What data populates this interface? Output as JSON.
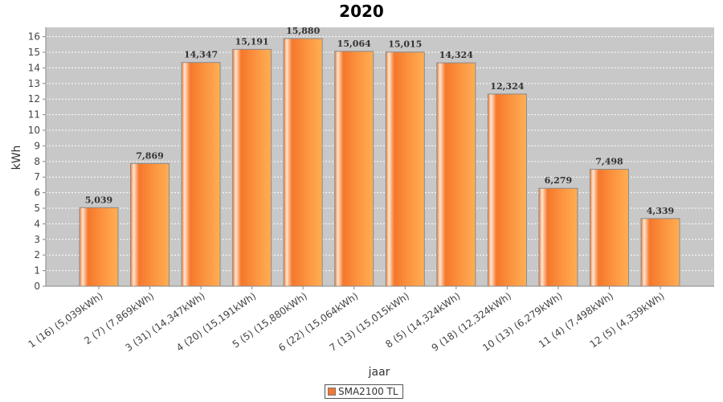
{
  "chart_data": {
    "type": "bar",
    "title": "2020",
    "xlabel": "jaar",
    "ylabel": "kWh",
    "ylim": [
      0,
      16.6
    ],
    "yticks": [
      0,
      1,
      2,
      3,
      4,
      5,
      6,
      7,
      8,
      9,
      10,
      11,
      12,
      13,
      14,
      15,
      16
    ],
    "grid": true,
    "legend_position": "bottom-center",
    "categories": [
      "1 (16)  (5,039kWh)",
      "2 (7)  (7,869kWh)",
      "3 (31)  (14,347kWh)",
      "4 (20)  (15,191kWh)",
      "5 (5)  (15,880kWh)",
      "6 (22)  (15,064kWh)",
      "7 (13)  (15,015kWh)",
      "8 (5)  (14,324kWh)",
      "9 (18)  (12,324kWh)",
      "10 (13)  (6,279kWh)",
      "11 (4)  (7,498kWh)",
      "12 (5)  (4,339kWh)"
    ],
    "series": [
      {
        "name": "SMA2100 TL",
        "color": "#f4772f",
        "values": [
          5.039,
          7.869,
          14.347,
          15.191,
          15.88,
          15.064,
          15.015,
          14.324,
          12.324,
          6.279,
          7.498,
          4.339
        ],
        "labels": [
          "5,039",
          "7,869",
          "14,347",
          "15,191",
          "15,880",
          "15,064",
          "15,015",
          "14,324",
          "12,324",
          "6,279",
          "7,498",
          "4,339"
        ]
      }
    ],
    "plot_background": "#c8c8c8"
  }
}
